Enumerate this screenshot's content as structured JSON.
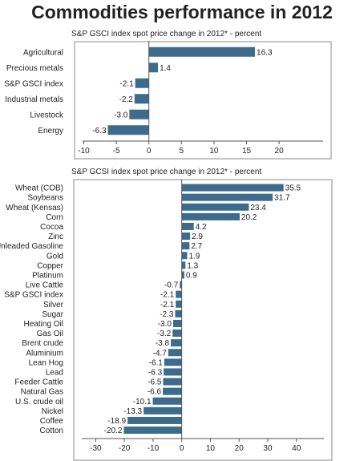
{
  "page": {
    "title": "Commodities performance in 2012"
  },
  "chart_data": [
    {
      "type": "bar",
      "orientation": "horizontal",
      "title": "S&P GSCI index spot price change in 2012* - percent",
      "categories": [
        "Agricultural",
        "Precious metals",
        "S&P GSCI index",
        "Industrial metals",
        "Livestock",
        "Energy"
      ],
      "values": [
        16.3,
        1.4,
        -2.1,
        -2.2,
        -3.0,
        -6.3
      ],
      "value_labels": [
        "16.3",
        "1.4",
        "-2.1",
        "-2.2",
        "-3.0",
        "-6.3"
      ],
      "xlim": [
        -10,
        25
      ],
      "xticks": [
        -10,
        -5,
        0,
        5,
        10,
        15,
        20
      ],
      "xtick_labels": [
        "-10",
        "-5",
        "0",
        "5",
        "10",
        "15",
        "20"
      ],
      "color": "#3d6b8c",
      "grid": false
    },
    {
      "type": "bar",
      "orientation": "horizontal",
      "title": "S&P GCSI index spot price change in 2012* - percent",
      "categories": [
        "Wheat (COB)",
        "Soybeans",
        "Wheat (Kensas)",
        "Corn",
        "Cocoa",
        "Zinc",
        "Unleaded Gasoline",
        "Gold",
        "Copper",
        "Platinum",
        "Live Cattle",
        "S&P GSCI index",
        "Silver",
        "Sugar",
        "Heating Oil",
        "Gas Oil",
        "Brent crude",
        "Aluminium",
        "Lean Hog",
        "Lead",
        "Feeder Cattle",
        "Natural Gas",
        "U.S. crude oil",
        "Nickel",
        "Coffee",
        "Cotton"
      ],
      "values": [
        35.5,
        31.7,
        23.4,
        20.2,
        4.2,
        2.9,
        2.7,
        1.9,
        1.3,
        0.9,
        -0.7,
        -2.1,
        -2.1,
        -2.3,
        -3.0,
        -3.2,
        -3.8,
        -4.7,
        -6.1,
        -6.3,
        -6.5,
        -6.6,
        -10.1,
        -13.3,
        -18.9,
        -20.2
      ],
      "value_labels": [
        "35.5",
        "31.7",
        "23.4",
        "20.2",
        "4.2",
        "2.9",
        "2.7",
        "1.9",
        "1.3",
        "0.9",
        "-0.7",
        "-2.1",
        "-2.1",
        "-2.3",
        "-3.0",
        "-3.2",
        "-3.8",
        "-4.7",
        "-6.1",
        "-6.3",
        "-6.5",
        "-6.6",
        "-10.1",
        "-13.3",
        "-18.9",
        "-20.2"
      ],
      "xlim": [
        -35,
        50
      ],
      "xticks": [
        -30,
        -20,
        -10,
        0,
        10,
        20,
        30,
        40
      ],
      "xtick_labels": [
        "-30",
        "-20",
        "-10",
        "0",
        "10",
        "20",
        "30",
        "40"
      ],
      "color": "#3d6b8c",
      "grid": false
    }
  ]
}
